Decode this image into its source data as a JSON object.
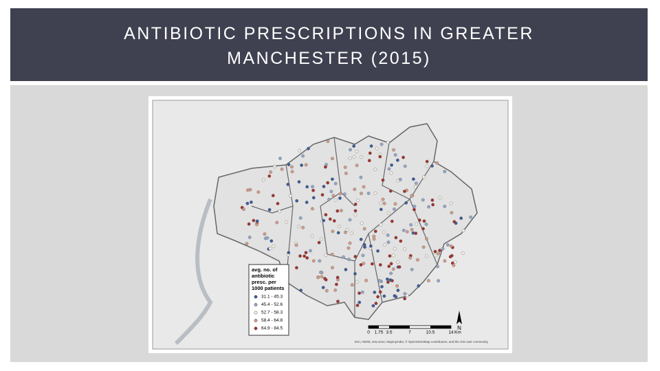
{
  "header": {
    "title_lines": [
      "ANTIBIOTIC PRESCRIPTIONS IN GREATER",
      "MANCHESTER (2015)"
    ]
  },
  "map": {
    "legend": {
      "title_lines": [
        "avg. no. of",
        "antibiotic",
        "presc. per",
        "1000 patients"
      ],
      "items": [
        {
          "label": "31.1 - 45.3",
          "color": "#3b5b9b"
        },
        {
          "label": "45.4 - 52.6",
          "color": "#93a7cc"
        },
        {
          "label": "52.7 - 58.3",
          "color": "#f4f1e6"
        },
        {
          "label": "58.4 - 64.8",
          "color": "#d59a88"
        },
        {
          "label": "64.9 - 84.5",
          "color": "#a3312c"
        }
      ]
    },
    "scale": {
      "ticks": [
        "0",
        "1.75",
        "3.5",
        "7",
        "10.5",
        "14"
      ],
      "unit": "Km"
    },
    "north": "N",
    "attribution": "Esri, HERE, DeLorme, MapmyIndia, © OpenStreetMap contributors, and the GIS user community"
  }
}
